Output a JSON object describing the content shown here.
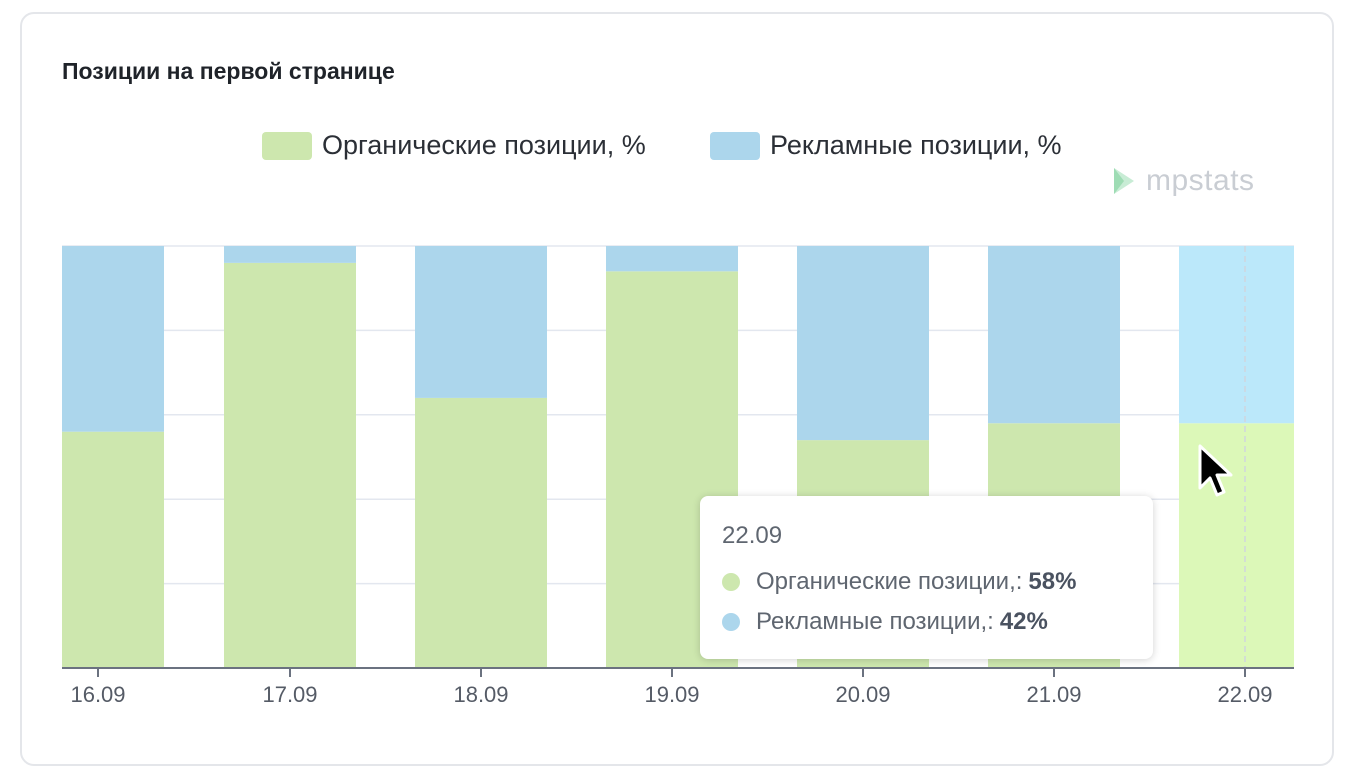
{
  "chart_data": {
    "type": "bar",
    "stacked": true,
    "title": "Позиции на первой странице",
    "categories": [
      "16.09",
      "17.09",
      "18.09",
      "19.09",
      "20.09",
      "21.09",
      "22.09"
    ],
    "series": [
      {
        "name": "Органические позиции, %",
        "color": "#cde7ae",
        "values": [
          56,
          96,
          64,
          94,
          54,
          58,
          58
        ]
      },
      {
        "name": "Рекламные позиции, %",
        "color": "#acd6ec",
        "values": [
          44,
          4,
          36,
          6,
          46,
          42,
          42
        ]
      }
    ],
    "ylim": [
      0,
      100
    ],
    "grid": true,
    "legend_position": "top",
    "highlighted_category": "22.09",
    "highlight_colors": {
      "organic": "#dcf8b8",
      "ads": "#bbe8fa"
    }
  },
  "watermark": {
    "text": "mpstats",
    "icon": "mpstats-logo-icon"
  },
  "tooltip": {
    "date": "22.09",
    "rows": [
      {
        "label": "Органические позиции,:",
        "value": "58%",
        "color": "#cde7ae"
      },
      {
        "label": "Рекламные позиции,:",
        "value": "42%",
        "color": "#acd6ec"
      }
    ]
  }
}
